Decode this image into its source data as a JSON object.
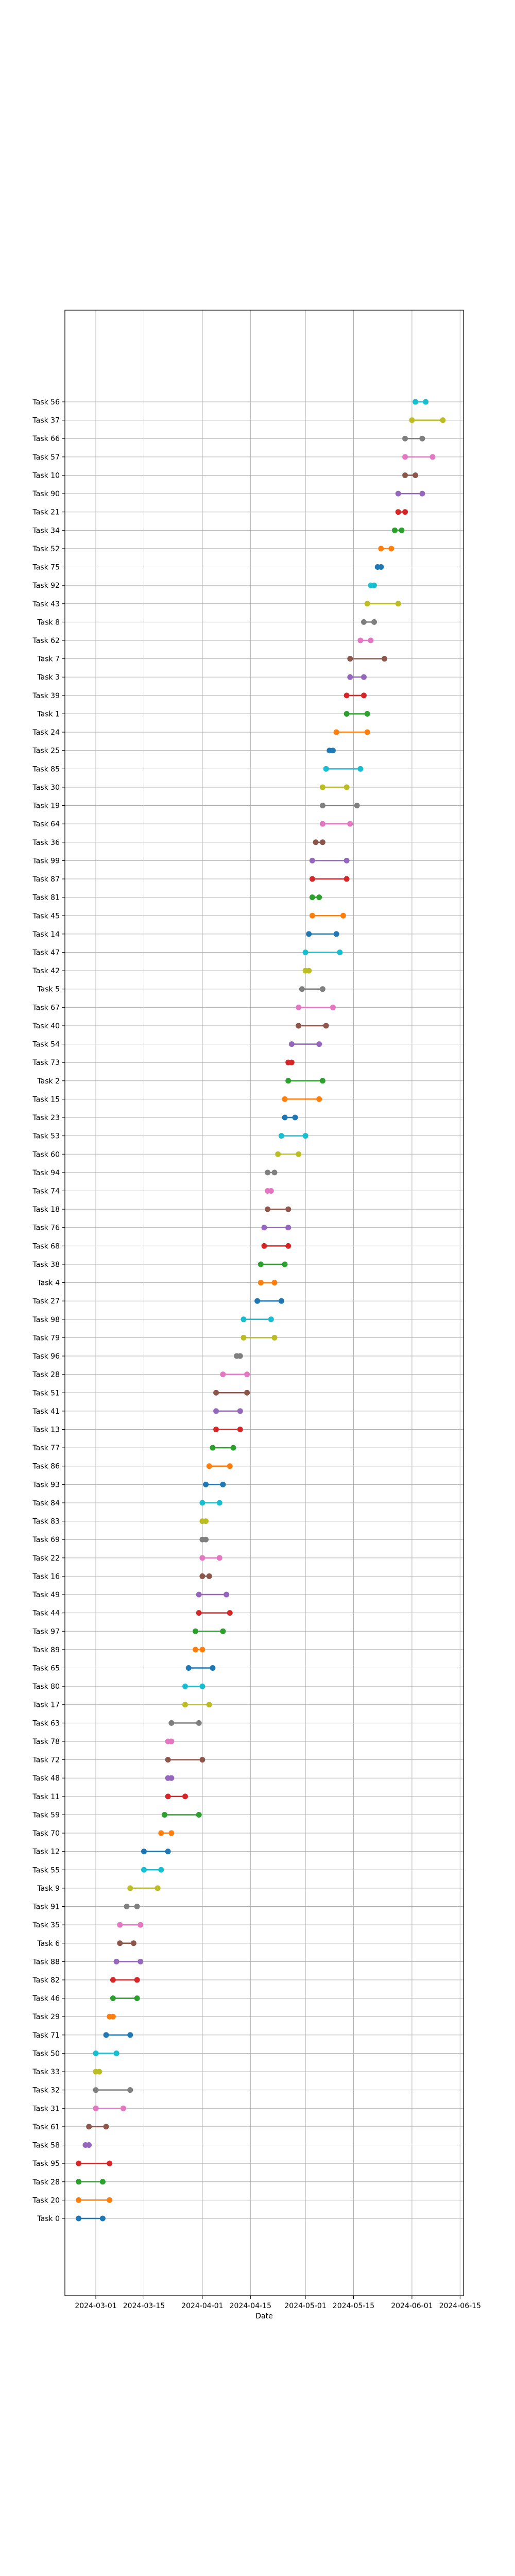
{
  "chart_data": {
    "type": "dumbbell",
    "title": "",
    "xlabel": "Date",
    "ylabel": "",
    "grid": true,
    "x_ticks": [
      "2024-03-01",
      "2024-03-15",
      "2024-04-01",
      "2024-04-15",
      "2024-05-01",
      "2024-05-15",
      "2024-06-01",
      "2024-06-15"
    ],
    "xlim": [
      "2024-02-21",
      "2024-06-16"
    ],
    "palette": [
      "#1f77b4",
      "#ff7f0e",
      "#2ca02c",
      "#d62728",
      "#9467bd",
      "#8c564b",
      "#e377c2",
      "#7f7f7f",
      "#bcbd22",
      "#17becf"
    ],
    "tasks": [
      {
        "label": "Task 56",
        "start": "2024-06-02",
        "end": "2024-06-05"
      },
      {
        "label": "Task 37",
        "start": "2024-06-01",
        "end": "2024-06-10"
      },
      {
        "label": "Task 66",
        "start": "2024-05-30",
        "end": "2024-06-04"
      },
      {
        "label": "Task 57",
        "start": "2024-05-30",
        "end": "2024-06-07"
      },
      {
        "label": "Task 10",
        "start": "2024-05-30",
        "end": "2024-06-02"
      },
      {
        "label": "Task 90",
        "start": "2024-05-28",
        "end": "2024-06-04"
      },
      {
        "label": "Task 21",
        "start": "2024-05-28",
        "end": "2024-05-30"
      },
      {
        "label": "Task 34",
        "start": "2024-05-27",
        "end": "2024-05-29"
      },
      {
        "label": "Task 52",
        "start": "2024-05-23",
        "end": "2024-05-26"
      },
      {
        "label": "Task 75",
        "start": "2024-05-22",
        "end": "2024-05-23"
      },
      {
        "label": "Task 92",
        "start": "2024-05-20",
        "end": "2024-05-21"
      },
      {
        "label": "Task 43",
        "start": "2024-05-19",
        "end": "2024-05-28"
      },
      {
        "label": "Task 8",
        "start": "2024-05-18",
        "end": "2024-05-21"
      },
      {
        "label": "Task 62",
        "start": "2024-05-17",
        "end": "2024-05-20"
      },
      {
        "label": "Task 7",
        "start": "2024-05-14",
        "end": "2024-05-24"
      },
      {
        "label": "Task 3",
        "start": "2024-05-14",
        "end": "2024-05-18"
      },
      {
        "label": "Task 39",
        "start": "2024-05-13",
        "end": "2024-05-18"
      },
      {
        "label": "Task 1",
        "start": "2024-05-13",
        "end": "2024-05-19"
      },
      {
        "label": "Task 24",
        "start": "2024-05-10",
        "end": "2024-05-19"
      },
      {
        "label": "Task 25",
        "start": "2024-05-08",
        "end": "2024-05-09"
      },
      {
        "label": "Task 85",
        "start": "2024-05-07",
        "end": "2024-05-17"
      },
      {
        "label": "Task 30",
        "start": "2024-05-06",
        "end": "2024-05-13"
      },
      {
        "label": "Task 19",
        "start": "2024-05-06",
        "end": "2024-05-16"
      },
      {
        "label": "Task 64",
        "start": "2024-05-06",
        "end": "2024-05-14"
      },
      {
        "label": "Task 36",
        "start": "2024-05-04",
        "end": "2024-05-06"
      },
      {
        "label": "Task 99",
        "start": "2024-05-03",
        "end": "2024-05-13"
      },
      {
        "label": "Task 87",
        "start": "2024-05-03",
        "end": "2024-05-13"
      },
      {
        "label": "Task 81",
        "start": "2024-05-03",
        "end": "2024-05-05"
      },
      {
        "label": "Task 45",
        "start": "2024-05-03",
        "end": "2024-05-12"
      },
      {
        "label": "Task 14",
        "start": "2024-05-02",
        "end": "2024-05-10"
      },
      {
        "label": "Task 47",
        "start": "2024-05-01",
        "end": "2024-05-11"
      },
      {
        "label": "Task 42",
        "start": "2024-05-01",
        "end": "2024-05-02"
      },
      {
        "label": "Task 5",
        "start": "2024-04-30",
        "end": "2024-05-06"
      },
      {
        "label": "Task 67",
        "start": "2024-04-29",
        "end": "2024-05-09"
      },
      {
        "label": "Task 40",
        "start": "2024-04-29",
        "end": "2024-05-07"
      },
      {
        "label": "Task 54",
        "start": "2024-04-27",
        "end": "2024-05-05"
      },
      {
        "label": "Task 73",
        "start": "2024-04-26",
        "end": "2024-04-27"
      },
      {
        "label": "Task 2",
        "start": "2024-04-26",
        "end": "2024-05-06"
      },
      {
        "label": "Task 15",
        "start": "2024-04-25",
        "end": "2024-05-05"
      },
      {
        "label": "Task 23",
        "start": "2024-04-25",
        "end": "2024-04-28"
      },
      {
        "label": "Task 53",
        "start": "2024-04-24",
        "end": "2024-05-01"
      },
      {
        "label": "Task 60",
        "start": "2024-04-23",
        "end": "2024-04-29"
      },
      {
        "label": "Task 94",
        "start": "2024-04-20",
        "end": "2024-04-22"
      },
      {
        "label": "Task 74",
        "start": "2024-04-20",
        "end": "2024-04-21"
      },
      {
        "label": "Task 18",
        "start": "2024-04-20",
        "end": "2024-04-26"
      },
      {
        "label": "Task 76",
        "start": "2024-04-19",
        "end": "2024-04-26"
      },
      {
        "label": "Task 68",
        "start": "2024-04-19",
        "end": "2024-04-26"
      },
      {
        "label": "Task 38",
        "start": "2024-04-18",
        "end": "2024-04-25"
      },
      {
        "label": "Task 4",
        "start": "2024-04-18",
        "end": "2024-04-22"
      },
      {
        "label": "Task 27",
        "start": "2024-04-17",
        "end": "2024-04-24"
      },
      {
        "label": "Task 98",
        "start": "2024-04-13",
        "end": "2024-04-21"
      },
      {
        "label": "Task 79",
        "start": "2024-04-13",
        "end": "2024-04-22"
      },
      {
        "label": "Task 96",
        "start": "2024-04-11",
        "end": "2024-04-12"
      },
      {
        "label": "Task 28",
        "start": "2024-04-07",
        "end": "2024-04-14"
      },
      {
        "label": "Task 51",
        "start": "2024-04-05",
        "end": "2024-04-14"
      },
      {
        "label": "Task 41",
        "start": "2024-04-05",
        "end": "2024-04-12"
      },
      {
        "label": "Task 13",
        "start": "2024-04-05",
        "end": "2024-04-12"
      },
      {
        "label": "Task 77",
        "start": "2024-04-04",
        "end": "2024-04-10"
      },
      {
        "label": "Task 86",
        "start": "2024-04-03",
        "end": "2024-04-09"
      },
      {
        "label": "Task 93",
        "start": "2024-04-02",
        "end": "2024-04-07"
      },
      {
        "label": "Task 84",
        "start": "2024-04-01",
        "end": "2024-04-06"
      },
      {
        "label": "Task 83",
        "start": "2024-04-01",
        "end": "2024-04-02"
      },
      {
        "label": "Task 69",
        "start": "2024-04-01",
        "end": "2024-04-02"
      },
      {
        "label": "Task 22",
        "start": "2024-04-01",
        "end": "2024-04-06"
      },
      {
        "label": "Task 16",
        "start": "2024-04-01",
        "end": "2024-04-03"
      },
      {
        "label": "Task 49",
        "start": "2024-03-31",
        "end": "2024-04-08"
      },
      {
        "label": "Task 44",
        "start": "2024-03-31",
        "end": "2024-04-09"
      },
      {
        "label": "Task 97",
        "start": "2024-03-30",
        "end": "2024-04-07"
      },
      {
        "label": "Task 89",
        "start": "2024-03-30",
        "end": "2024-04-01"
      },
      {
        "label": "Task 65",
        "start": "2024-03-28",
        "end": "2024-04-04"
      },
      {
        "label": "Task 80",
        "start": "2024-03-27",
        "end": "2024-04-01"
      },
      {
        "label": "Task 17",
        "start": "2024-03-27",
        "end": "2024-04-03"
      },
      {
        "label": "Task 63",
        "start": "2024-03-23",
        "end": "2024-03-31"
      },
      {
        "label": "Task 78",
        "start": "2024-03-22",
        "end": "2024-03-23"
      },
      {
        "label": "Task 72",
        "start": "2024-03-22",
        "end": "2024-04-01"
      },
      {
        "label": "Task 48",
        "start": "2024-03-22",
        "end": "2024-03-23"
      },
      {
        "label": "Task 11",
        "start": "2024-03-22",
        "end": "2024-03-27"
      },
      {
        "label": "Task 59",
        "start": "2024-03-21",
        "end": "2024-03-31"
      },
      {
        "label": "Task 70",
        "start": "2024-03-20",
        "end": "2024-03-23"
      },
      {
        "label": "Task 12",
        "start": "2024-03-15",
        "end": "2024-03-22"
      },
      {
        "label": "Task 55",
        "start": "2024-03-15",
        "end": "2024-03-20"
      },
      {
        "label": "Task 9",
        "start": "2024-03-11",
        "end": "2024-03-19"
      },
      {
        "label": "Task 91",
        "start": "2024-03-10",
        "end": "2024-03-13"
      },
      {
        "label": "Task 35",
        "start": "2024-03-08",
        "end": "2024-03-14"
      },
      {
        "label": "Task 6",
        "start": "2024-03-08",
        "end": "2024-03-12"
      },
      {
        "label": "Task 88",
        "start": "2024-03-07",
        "end": "2024-03-14"
      },
      {
        "label": "Task 82",
        "start": "2024-03-06",
        "end": "2024-03-13"
      },
      {
        "label": "Task 46",
        "start": "2024-03-06",
        "end": "2024-03-13"
      },
      {
        "label": "Task 29",
        "start": "2024-03-05",
        "end": "2024-03-06"
      },
      {
        "label": "Task 71",
        "start": "2024-03-04",
        "end": "2024-03-11"
      },
      {
        "label": "Task 50",
        "start": "2024-03-01",
        "end": "2024-03-07"
      },
      {
        "label": "Task 33",
        "start": "2024-03-01",
        "end": "2024-03-02"
      },
      {
        "label": "Task 32",
        "start": "2024-03-01",
        "end": "2024-03-11"
      },
      {
        "label": "Task 31",
        "start": "2024-03-01",
        "end": "2024-03-09"
      },
      {
        "label": "Task 61",
        "start": "2024-02-28",
        "end": "2024-03-04"
      },
      {
        "label": "Task 58",
        "start": "2024-02-27",
        "end": "2024-02-28"
      },
      {
        "label": "Task 95",
        "start": "2024-02-25",
        "end": "2024-03-05"
      },
      {
        "label": "Task 28",
        "start": "2024-02-25",
        "end": "2024-03-03"
      },
      {
        "label": "Task 20",
        "start": "2024-02-25",
        "end": "2024-03-05"
      },
      {
        "label": "Task 0",
        "start": "2024-02-25",
        "end": "2024-03-03"
      }
    ]
  }
}
